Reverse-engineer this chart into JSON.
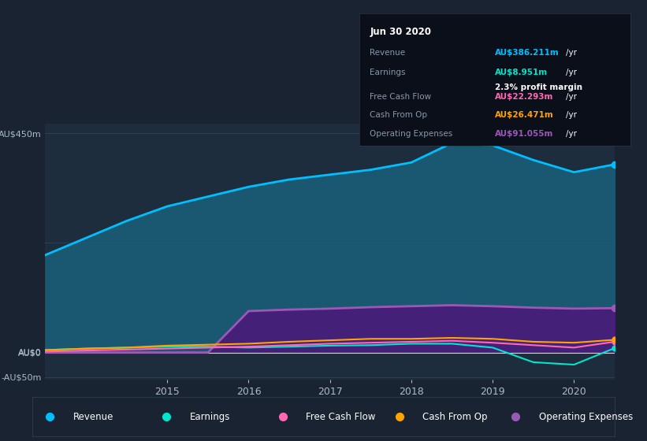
{
  "background_color": "#1a2332",
  "plot_bg_color": "#1e2d3d",
  "grid_color": "#2a3f55",
  "text_color": "#aabbcc",
  "title_color": "#ffffff",
  "years": [
    2013.5,
    2014.0,
    2014.5,
    2015.0,
    2015.5,
    2016.0,
    2016.5,
    2017.0,
    2017.5,
    2018.0,
    2018.5,
    2019.0,
    2019.5,
    2020.0,
    2020.5
  ],
  "revenue": [
    200,
    235,
    270,
    300,
    320,
    340,
    355,
    365,
    375,
    390,
    430,
    425,
    395,
    370,
    386
  ],
  "earnings": [
    5,
    8,
    10,
    12,
    12,
    10,
    12,
    14,
    15,
    18,
    18,
    10,
    -20,
    -25,
    9
  ],
  "free_cash_flow": [
    2,
    4,
    6,
    8,
    10,
    12,
    15,
    18,
    20,
    22,
    24,
    20,
    15,
    10,
    22
  ],
  "cash_from_op": [
    5,
    8,
    10,
    14,
    16,
    18,
    22,
    25,
    28,
    28,
    30,
    28,
    22,
    20,
    26
  ],
  "operating_expenses": [
    0,
    0,
    0,
    0,
    0,
    85,
    88,
    90,
    93,
    95,
    97,
    95,
    92,
    90,
    91
  ],
  "revenue_color": "#00bfff",
  "revenue_fill": "#1a5f7a",
  "earnings_color": "#00e5cc",
  "free_cash_flow_color": "#ff69b4",
  "cash_from_op_color": "#ffa500",
  "op_expenses_color": "#9b59b6",
  "op_expenses_fill": "#4a1a7a",
  "ylim_min": -55,
  "ylim_max": 470,
  "yticks": [
    -50,
    0,
    225,
    450
  ],
  "ytick_labels": [
    "-AU$50m",
    "AU$0",
    "",
    "AU$450m"
  ],
  "xlabel_color": "#8899aa",
  "info_box": {
    "date": "Jun 30 2020",
    "revenue_label": "Revenue",
    "revenue_val": "AU$386.211m",
    "revenue_color": "#00bfff",
    "earnings_label": "Earnings",
    "earnings_val": "AU$8.951m",
    "earnings_color": "#00e5cc",
    "profit_margin": "2.3% profit margin",
    "profit_margin_color": "#ffffff",
    "fcf_label": "Free Cash Flow",
    "fcf_val": "AU$22.293m",
    "fcf_color": "#ff69b4",
    "cfo_label": "Cash From Op",
    "cfo_val": "AU$26.471m",
    "cfo_color": "#ffa500",
    "opex_label": "Operating Expenses",
    "opex_val": "AU$91.055m",
    "opex_color": "#9b59b6"
  },
  "legend_items": [
    {
      "label": "Revenue",
      "color": "#00bfff"
    },
    {
      "label": "Earnings",
      "color": "#00e5cc"
    },
    {
      "label": "Free Cash Flow",
      "color": "#ff69b4"
    },
    {
      "label": "Cash From Op",
      "color": "#ffa500"
    },
    {
      "label": "Operating Expenses",
      "color": "#9b59b6"
    }
  ]
}
